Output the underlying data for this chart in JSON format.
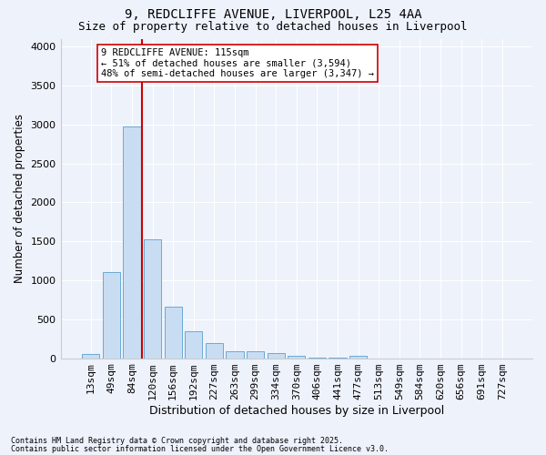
{
  "title_line1": "9, REDCLIFFE AVENUE, LIVERPOOL, L25 4AA",
  "title_line2": "Size of property relative to detached houses in Liverpool",
  "xlabel": "Distribution of detached houses by size in Liverpool",
  "ylabel": "Number of detached properties",
  "categories": [
    "13sqm",
    "49sqm",
    "84sqm",
    "120sqm",
    "156sqm",
    "192sqm",
    "227sqm",
    "263sqm",
    "299sqm",
    "334sqm",
    "370sqm",
    "406sqm",
    "441sqm",
    "477sqm",
    "513sqm",
    "549sqm",
    "584sqm",
    "620sqm",
    "656sqm",
    "691sqm",
    "727sqm"
  ],
  "values": [
    55,
    1110,
    2970,
    1530,
    660,
    340,
    195,
    90,
    85,
    60,
    28,
    10,
    5,
    25,
    0,
    0,
    0,
    0,
    0,
    0,
    0
  ],
  "bar_color": "#c9ddf2",
  "bar_edge_color": "#6aaad4",
  "vline_color": "#cc0000",
  "vline_x_index": 2,
  "annotation_text": "9 REDCLIFFE AVENUE: 115sqm\n← 51% of detached houses are smaller (3,594)\n48% of semi-detached houses are larger (3,347) →",
  "annotation_box_color": "#ffffff",
  "annotation_box_edge": "#cc0000",
  "ylim": [
    0,
    4100
  ],
  "yticks": [
    0,
    500,
    1000,
    1500,
    2000,
    2500,
    3000,
    3500,
    4000
  ],
  "footer_line1": "Contains HM Land Registry data © Crown copyright and database right 2025.",
  "footer_line2": "Contains public sector information licensed under the Open Government Licence v3.0.",
  "background_color": "#eef2fb",
  "plot_bg_color": "#eef2fb",
  "grid_color": "#ffffff",
  "title_fontsize": 10,
  "subtitle_fontsize": 9,
  "xlabel_fontsize": 9,
  "ylabel_fontsize": 8.5,
  "tick_fontsize": 8,
  "annotation_fontsize": 7.5,
  "footer_fontsize": 6
}
